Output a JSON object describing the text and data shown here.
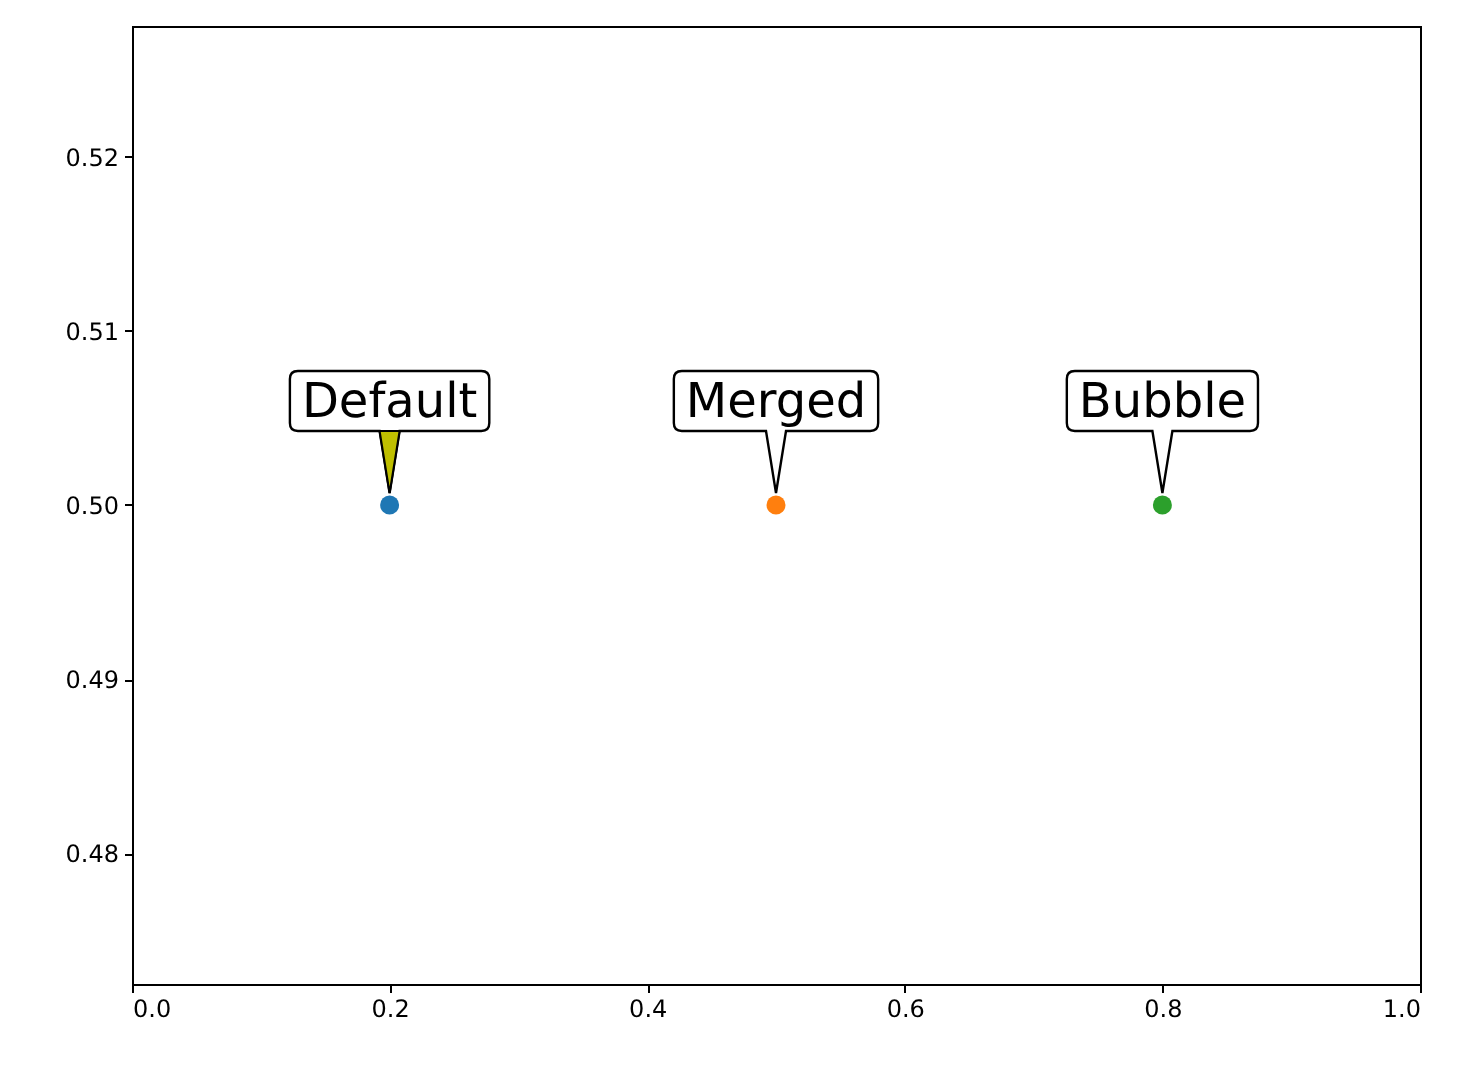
{
  "chart_data": {
    "type": "scatter",
    "marker": "circle",
    "grid": false,
    "x": [
      0.2,
      0.5,
      0.8
    ],
    "values": [
      0.5,
      0.5,
      0.5
    ],
    "colors": [
      "#1f77b4",
      "#ff7f0e",
      "#2ca02c"
    ],
    "xlim": [
      0,
      1
    ],
    "xticks": [
      {
        "value": 0,
        "label": "0.0"
      },
      0.2,
      0.4,
      0.6,
      0.8,
      {
        "value": 1,
        "label": "1.0"
      }
    ],
    "ylim": [
      0.4725,
      0.5275
    ],
    "yticks": [
      0.48,
      0.49,
      {
        "value": 0.5,
        "label": "0.50"
      },
      0.51,
      0.52
    ],
    "annotations": [
      {
        "text": "Default",
        "x": 0.2,
        "y": 0.5
      },
      {
        "text": "Merged",
        "x": 0.5,
        "y": 0.5
      },
      {
        "text": "Bubble",
        "x": 0.8,
        "y": 0.5
      }
    ]
  }
}
